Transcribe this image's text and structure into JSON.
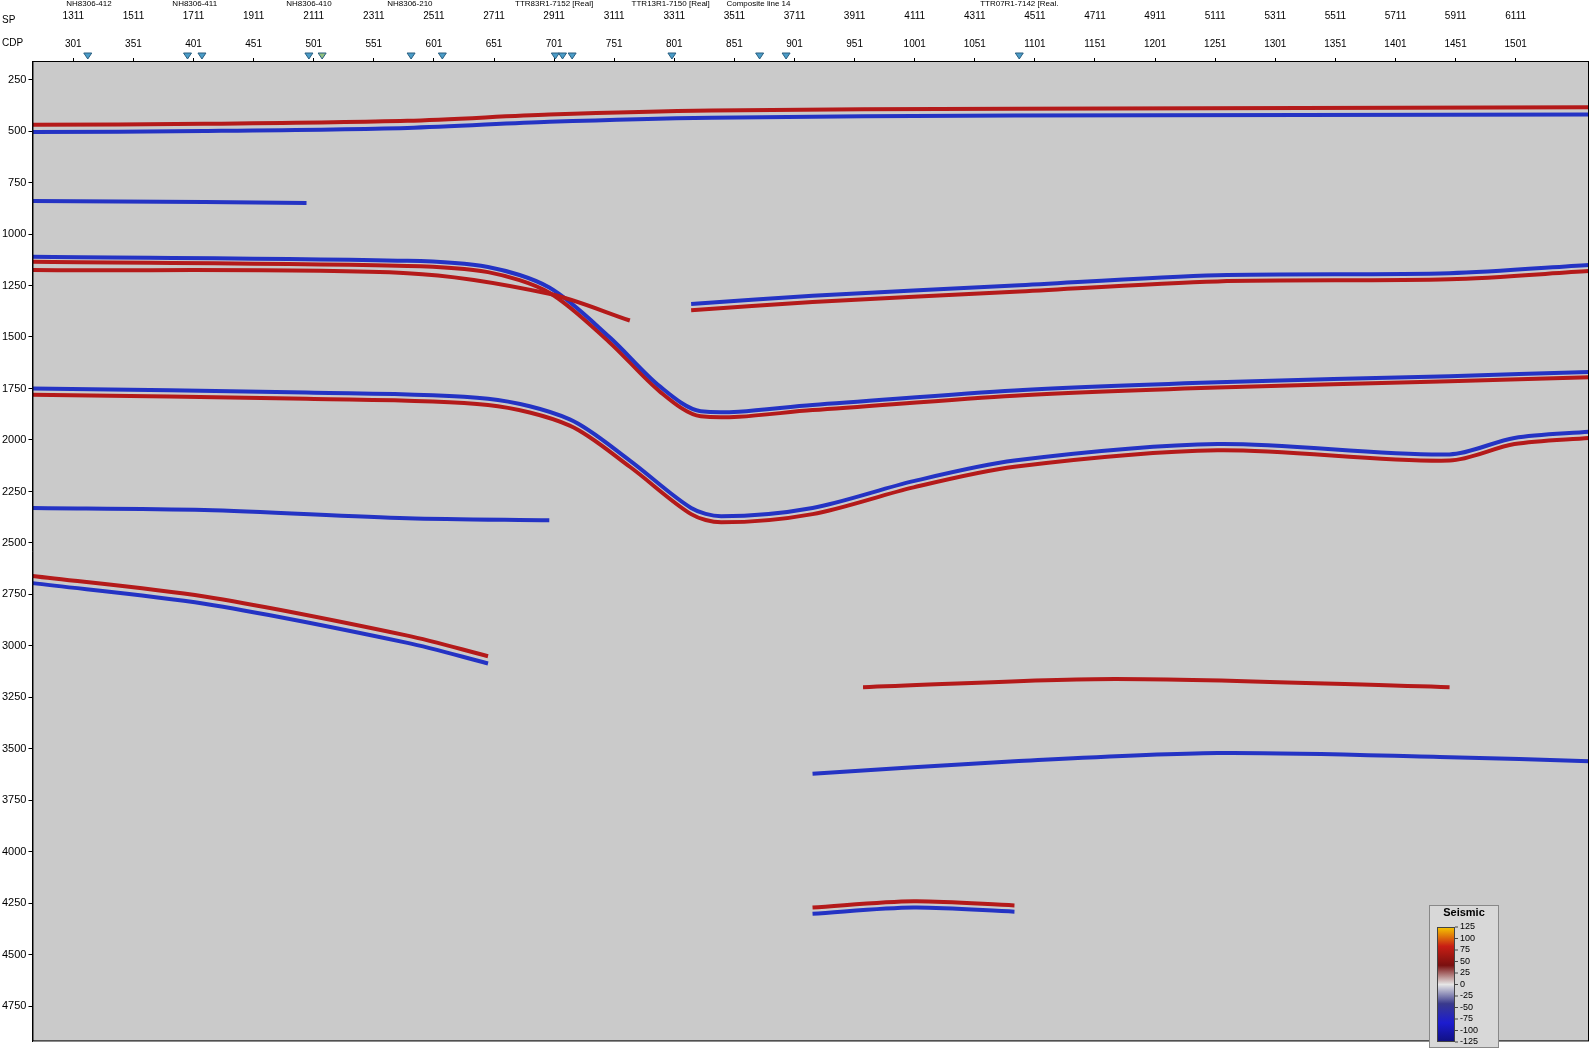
{
  "chart_data": {
    "type": "seismic_section",
    "x_label": "CDP",
    "x2_label": "SP",
    "xlim": [
      267,
      1562
    ],
    "xticks": [
      301,
      351,
      401,
      451,
      501,
      551,
      601,
      651,
      701,
      751,
      801,
      851,
      901,
      951,
      1001,
      1051,
      1101,
      1151,
      1201,
      1251,
      1301,
      1351,
      1401,
      1451,
      1501
    ],
    "x2lim": [
      1175,
      6355
    ],
    "x2ticks": [
      1311,
      1511,
      1711,
      1911,
      2111,
      2311,
      2511,
      2711,
      2911,
      3111,
      3311,
      3511,
      3711,
      3911,
      4111,
      4311,
      4511,
      4711,
      4911,
      5111,
      5311,
      5511,
      5711,
      5911,
      6111
    ],
    "ylim": [
      160,
      4920
    ],
    "yticks": [
      250,
      500,
      750,
      1000,
      1250,
      1500,
      1750,
      2000,
      2250,
      2500,
      2750,
      3000,
      3250,
      3500,
      3750,
      4000,
      4250,
      4500,
      4750
    ],
    "grid": false,
    "annotations": [
      {
        "text": "NH8306-412",
        "x": 314
      },
      {
        "text": "NH8306-411",
        "x": 402
      },
      {
        "text": "NH8306-410",
        "x": 497
      },
      {
        "text": "NH8306-210",
        "x": 581
      },
      {
        "text": "TTR83R1-7152 [Real]",
        "x": 701
      },
      {
        "text": "TTR13R1-7150 [Real]",
        "x": 798
      },
      {
        "text": "Composite line 14",
        "x": 871
      },
      {
        "text": "TTR07R1-7142 [Real.",
        "x": 1088
      }
    ],
    "markers": [
      {
        "x": 313,
        "color": "#4a9cc8"
      },
      {
        "x": 396,
        "color": "#4a9cc8"
      },
      {
        "x": 408,
        "color": "#4a9cc8"
      },
      {
        "x": 497,
        "color": "#4a9cc8"
      },
      {
        "x": 508,
        "color": "#8fbf7f"
      },
      {
        "x": 582,
        "color": "#4a9cc8"
      },
      {
        "x": 608,
        "color": "#4a9cc8"
      },
      {
        "x": 702,
        "color": "#4a9cc8"
      },
      {
        "x": 708,
        "color": "#4a9cc8"
      },
      {
        "x": 716,
        "color": "#4a9cc8"
      },
      {
        "x": 799,
        "color": "#4a9cc8"
      },
      {
        "x": 872,
        "color": "#4a9cc8"
      },
      {
        "x": 894,
        "color": "#4a9cc8"
      },
      {
        "x": 1088,
        "color": "#4a9cc8"
      }
    ],
    "series": [
      {
        "color": "#b41a1a",
        "x": [
          267,
          410,
          579,
          697,
          832,
          1084,
          1562
        ],
        "values": [
          470,
          465,
          450,
          420,
          400,
          392,
          385
        ]
      },
      {
        "color": "#2433c4",
        "x": [
          267,
          410,
          579,
          697,
          832,
          1084,
          1562
        ],
        "values": [
          505,
          500,
          485,
          455,
          435,
          425,
          420
        ]
      },
      {
        "color": "#2433c4",
        "x": [
          267,
          410,
          495
        ],
        "values": [
          840,
          845,
          850
        ]
      },
      {
        "color": "#b41a1a",
        "x": [
          267,
          579,
          697,
          764
        ],
        "values": [
          1175,
          1190,
          1290,
          1420
        ]
      },
      {
        "color": "#2433c4",
        "x": [
          815,
          916,
          1084,
          1253,
          1446,
          1562
        ],
        "values": [
          1340,
          1300,
          1250,
          1200,
          1190,
          1150
        ]
      },
      {
        "color": "#b41a1a",
        "x": [
          815,
          916,
          1084,
          1253,
          1446,
          1562
        ],
        "values": [
          1370,
          1330,
          1280,
          1230,
          1220,
          1180
        ]
      },
      {
        "color": "#2433c4",
        "x": [
          267,
          579,
          646,
          697,
          747,
          789,
          823,
          916,
          1084,
          1253,
          1446,
          1562
        ],
        "values": [
          1110,
          1130,
          1160,
          1260,
          1500,
          1740,
          1860,
          1830,
          1760,
          1720,
          1690,
          1670
        ]
      },
      {
        "color": "#b41a1a",
        "x": [
          267,
          579,
          646,
          697,
          747,
          789,
          823,
          916,
          1084,
          1253,
          1446,
          1562
        ],
        "values": [
          1135,
          1155,
          1185,
          1285,
          1525,
          1765,
          1885,
          1855,
          1785,
          1745,
          1715,
          1695
        ]
      },
      {
        "color": "#2433c4",
        "x": [
          267,
          495,
          646,
          714,
          764,
          815,
          840,
          916,
          1000,
          1084,
          1253,
          1446,
          1500,
          1562
        ],
        "values": [
          1750,
          1770,
          1800,
          1900,
          2100,
          2330,
          2370,
          2330,
          2200,
          2100,
          2020,
          2070,
          1990,
          1960
        ]
      },
      {
        "color": "#b41a1a",
        "x": [
          267,
          495,
          646,
          714,
          764,
          815,
          840,
          916,
          1000,
          1084,
          1253,
          1446,
          1500,
          1562
        ],
        "values": [
          1780,
          1800,
          1830,
          1930,
          2130,
          2360,
          2400,
          2360,
          2230,
          2130,
          2050,
          2100,
          2020,
          1990
        ]
      },
      {
        "color": "#2433c4",
        "x": [
          267,
          410,
          579,
          697
        ],
        "values": [
          2330,
          2340,
          2380,
          2390
        ]
      },
      {
        "color": "#b41a1a",
        "x": [
          267,
          410,
          579,
          646
        ],
        "values": [
          2660,
          2760,
          2950,
          3050
        ]
      },
      {
        "color": "#2433c4",
        "x": [
          267,
          410,
          579,
          646
        ],
        "values": [
          2695,
          2795,
          2985,
          3085
        ]
      },
      {
        "color": "#b41a1a",
        "x": [
          958,
          1168,
          1446
        ],
        "values": [
          3200,
          3160,
          3200
        ]
      },
      {
        "color": "#2433c4",
        "x": [
          916,
          1084,
          1253,
          1446,
          1562
        ],
        "values": [
          3620,
          3560,
          3520,
          3540,
          3560
        ]
      },
      {
        "color": "#b41a1a",
        "x": [
          916,
          1000,
          1084
        ],
        "values": [
          4270,
          4240,
          4260
        ]
      },
      {
        "color": "#2433c4",
        "x": [
          916,
          1000,
          1084
        ],
        "values": [
          4300,
          4270,
          4290
        ]
      }
    ],
    "colorbar": {
      "title": "Seismic",
      "range": [
        -125,
        125
      ],
      "ticks": [
        125,
        100,
        75,
        50,
        25,
        0,
        -25,
        -50,
        -75,
        -100,
        -125
      ],
      "colors": [
        "#f6c800",
        "#c81e14",
        "#7a1010",
        "#e6e6e6",
        "#3a3a8c",
        "#1c1cd0",
        "#101080"
      ]
    }
  }
}
